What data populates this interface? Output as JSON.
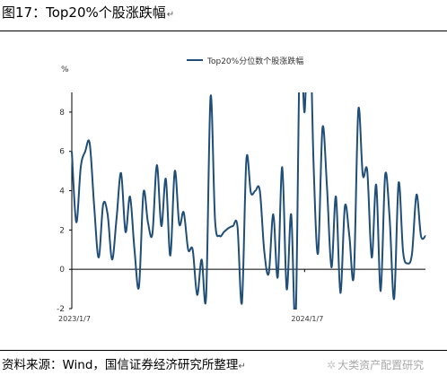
{
  "figure": {
    "title": "图17：Top20%个股涨跌幅",
    "return_mark": "↵",
    "source": "资料来源：Wind，国信证券经济研究所整理",
    "watermark": "大类资产配置研究"
  },
  "chart_data": {
    "type": "line",
    "title": "",
    "ylabel": "%",
    "xlabel": "",
    "ylim": [
      -2,
      9
    ],
    "yticks": [
      -2,
      0,
      2,
      4,
      6,
      8
    ],
    "x_tick_labels": [
      {
        "label": "2023/1/7",
        "at": 0
      },
      {
        "label": "2024/1/7",
        "at": 52
      }
    ],
    "legend_position": "top-center",
    "grid": false,
    "series": [
      {
        "name": "Top20%分位数个股涨跌幅",
        "color": "#1f4e79",
        "values": [
          6.0,
          2.4,
          5.2,
          6.0,
          6.4,
          3.2,
          0.6,
          3.3,
          2.8,
          0.5,
          2.6,
          4.9,
          1.9,
          3.7,
          1.0,
          -0.9,
          3.9,
          2.4,
          1.8,
          5.3,
          2.2,
          4.6,
          0.7,
          5.0,
          2.3,
          2.9,
          1.0,
          1.0,
          -1.3,
          0.5,
          -1.4,
          8.8,
          2.5,
          1.7,
          1.9,
          2.1,
          2.2,
          2.2,
          -1.7,
          5.6,
          3.9,
          4.0,
          4.0,
          0.9,
          -0.2,
          2.8,
          -0.4,
          5.2,
          -1.0,
          2.8,
          -2.6,
          12.0,
          8.0,
          14.0,
          5.4,
          0.8,
          7.2,
          4.2,
          0.1,
          3.7,
          -1.2,
          3.2,
          1.7,
          -0.3,
          8.1,
          4.8,
          5.0,
          0.6,
          4.3,
          -1.1,
          4.8,
          2.6,
          -1.5,
          4.4,
          0.9,
          0.3,
          0.8,
          3.8,
          1.7,
          1.7
        ]
      }
    ]
  }
}
